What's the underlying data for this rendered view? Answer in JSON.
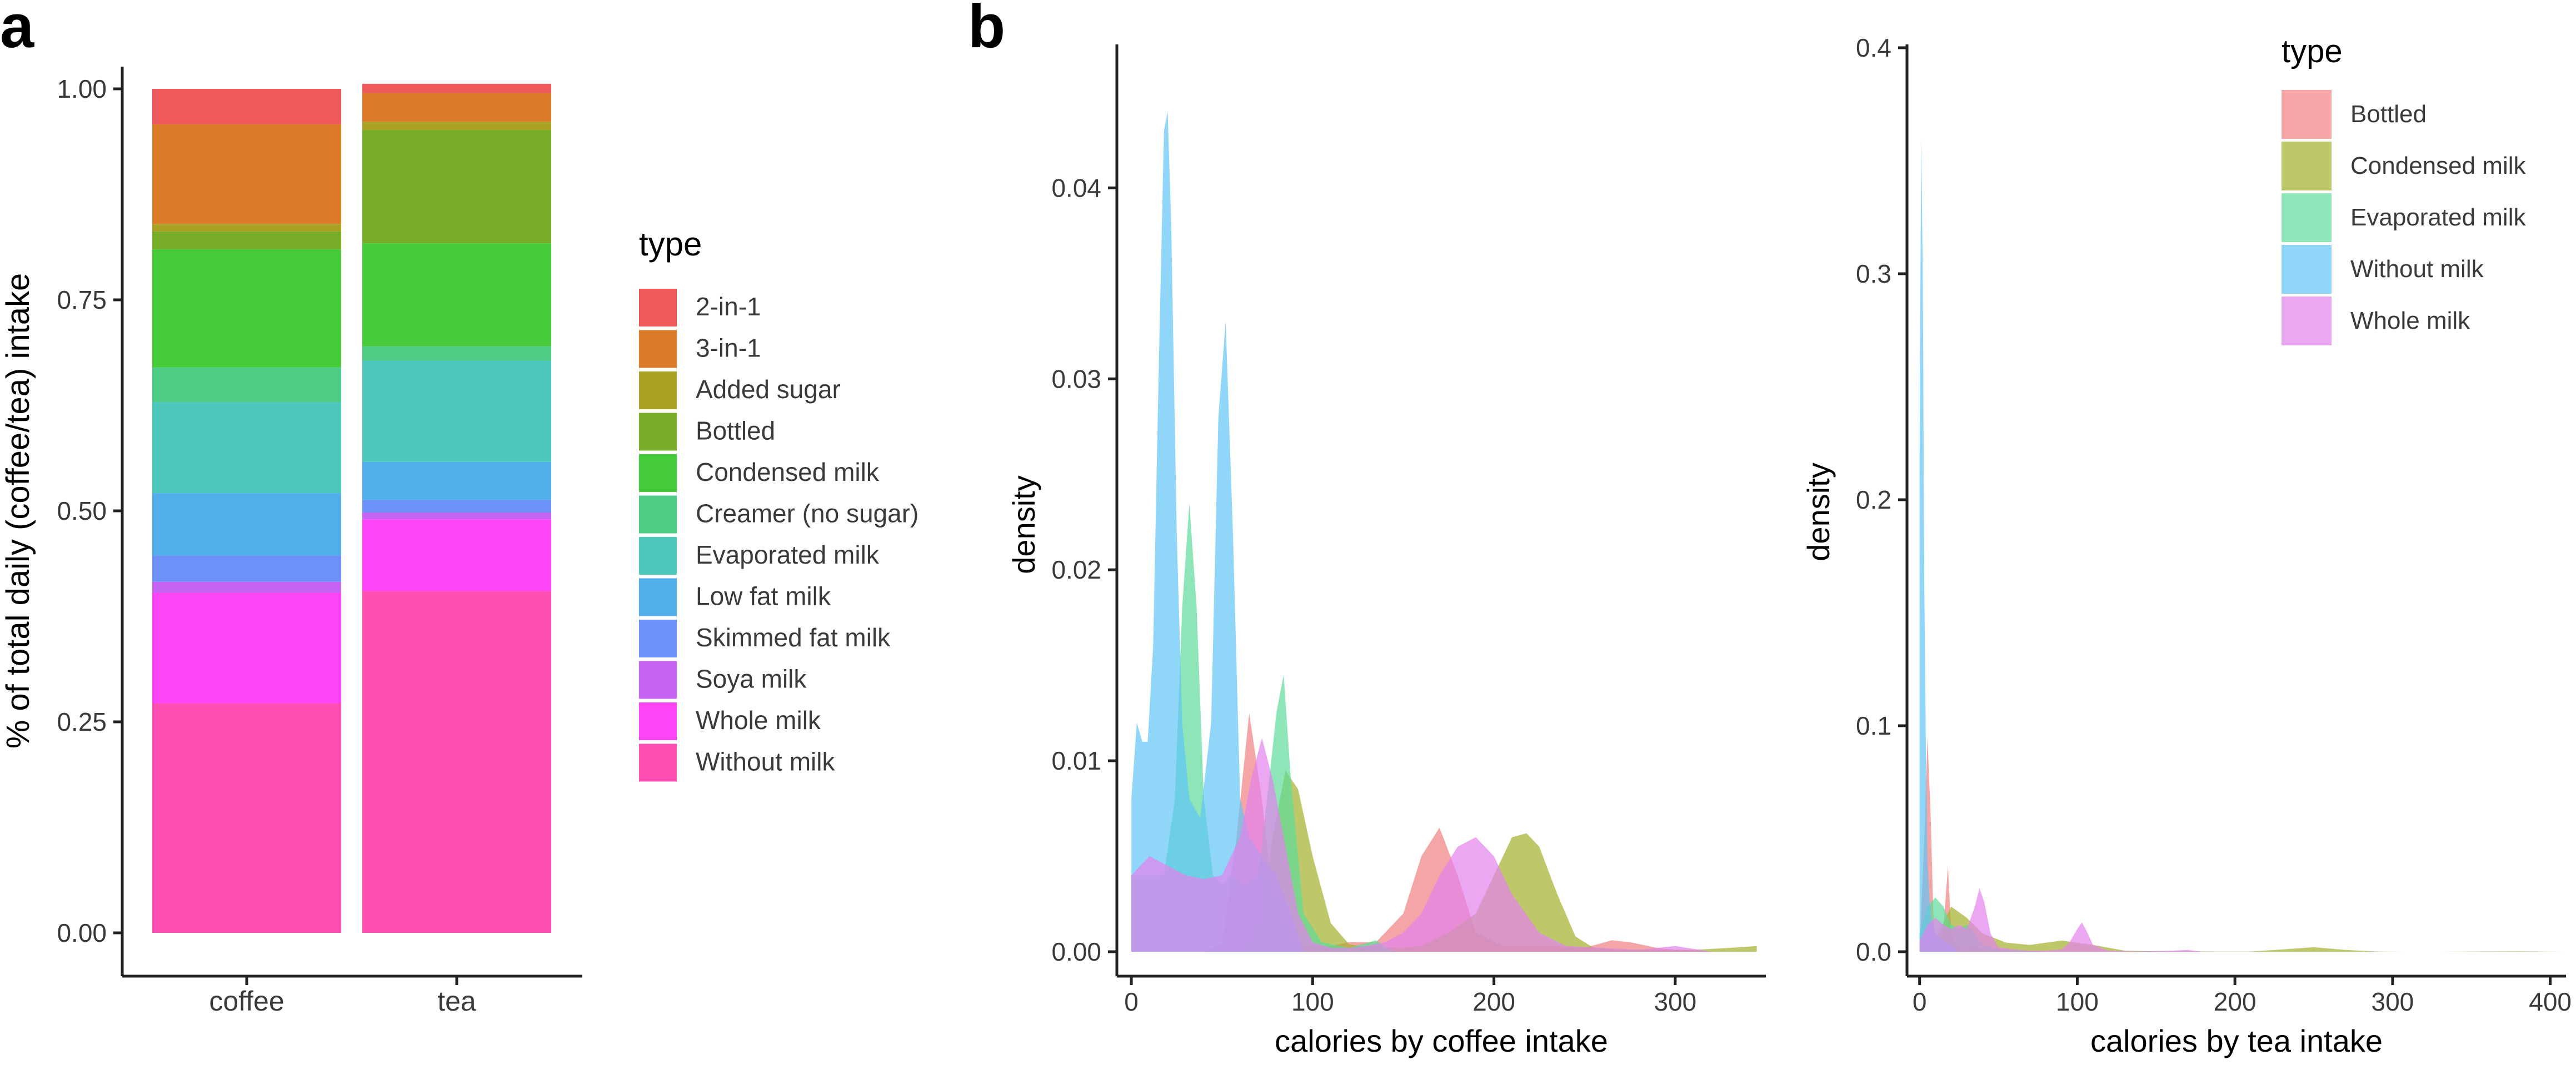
{
  "chart_data": [
    {
      "panel": "a",
      "type": "bar",
      "stacked": true,
      "ylabel": "% of total daily (coffee/tea) intake",
      "xlabel": "",
      "ylim": [
        0,
        1
      ],
      "yticks": [
        "0.00",
        "0.25",
        "0.50",
        "0.75",
        "1.00"
      ],
      "categories": [
        "coffee",
        "tea"
      ],
      "legend_title": "type",
      "series": [
        {
          "name": "Without milk",
          "color": "#FF4FB3",
          "values": [
            0.272,
            0.405
          ]
        },
        {
          "name": "Whole milk",
          "color": "#FD45F6",
          "values": [
            0.131,
            0.085
          ]
        },
        {
          "name": "Soya milk",
          "color": "#C564F2",
          "values": [
            0.013,
            0.008
          ]
        },
        {
          "name": "Skimmed fat milk",
          "color": "#6C91F8",
          "values": [
            0.031,
            0.015
          ]
        },
        {
          "name": "Low fat milk",
          "color": "#50AEEB",
          "values": [
            0.074,
            0.045
          ]
        },
        {
          "name": "Evaporated milk",
          "color": "#4CC9BA",
          "values": [
            0.108,
            0.12
          ]
        },
        {
          "name": "Creamer (no sugar)",
          "color": "#4ECB85",
          "values": [
            0.041,
            0.017
          ]
        },
        {
          "name": "Condensed milk",
          "color": "#47CB3B",
          "values": [
            0.14,
            0.122
          ]
        },
        {
          "name": "Bottled",
          "color": "#78AD2A",
          "values": [
            0.021,
            0.134
          ]
        },
        {
          "name": "Added sugar",
          "color": "#A9A224",
          "values": [
            0.009,
            0.01
          ]
        },
        {
          "name": "3-in-1",
          "color": "#DB7A29",
          "values": [
            0.118,
            0.034
          ]
        },
        {
          "name": "2-in-1",
          "color": "#F0595C",
          "values": [
            0.042,
            0.011
          ]
        }
      ],
      "legend_order": [
        "2-in-1",
        "3-in-1",
        "Added sugar",
        "Bottled",
        "Condensed milk",
        "Creamer (no sugar)",
        "Evaporated milk",
        "Low fat milk",
        "Skimmed fat milk",
        "Soya milk",
        "Whole milk",
        "Without milk"
      ]
    },
    {
      "panel": "b",
      "type": "area",
      "subtype": "density",
      "xlabel": "calories by coffee intake",
      "ylabel": "density",
      "xlim": [
        -8,
        350
      ],
      "ylim": [
        0,
        0.046
      ],
      "xticks": [
        0,
        100,
        200,
        300
      ],
      "yticks": [
        "0.00",
        "0.01",
        "0.02",
        "0.03",
        "0.04"
      ],
      "series": [
        {
          "name": "Bottled",
          "color": "#F08080",
          "x": [
            0,
            20,
            40,
            50,
            58,
            65,
            72,
            80,
            92,
            105,
            120,
            135,
            150,
            160,
            170,
            180,
            190,
            205,
            230,
            250,
            265,
            275,
            290,
            300,
            310,
            320
          ],
          "y": [
            0,
            0,
            0,
            0.0005,
            0.006,
            0.0125,
            0.008,
            0.001,
            0.0003,
            0.0002,
            0.0005,
            0.0005,
            0.002,
            0.005,
            0.0065,
            0.004,
            0.001,
            0.0003,
            0.0003,
            0.0002,
            0.0006,
            0.0005,
            0.0002,
            0.0001,
            0.0001,
            0
          ]
        },
        {
          "name": "Condensed milk",
          "color": "#A3B02C",
          "x": [
            0,
            30,
            60,
            70,
            78,
            85,
            92,
            100,
            110,
            120,
            130,
            140,
            150,
            160,
            175,
            190,
            200,
            210,
            218,
            225,
            235,
            245,
            255,
            270,
            290,
            310,
            330,
            345
          ],
          "y": [
            0,
            0,
            0,
            0.001,
            0.006,
            0.0095,
            0.0085,
            0.005,
            0.0015,
            0.0004,
            0.0002,
            0.0002,
            0.0002,
            0.0003,
            0.001,
            0.002,
            0.004,
            0.006,
            0.0062,
            0.0055,
            0.003,
            0.0008,
            0.0002,
            0.0001,
            0.0001,
            0.0001,
            0.0002,
            0.0003
          ]
        },
        {
          "name": "Evaporated milk",
          "color": "#5EDC9A",
          "x": [
            0,
            10,
            18,
            24,
            28,
            32,
            36,
            40,
            45,
            50,
            55,
            62,
            70,
            76,
            80,
            84,
            88,
            95,
            105,
            120,
            135,
            145
          ],
          "y": [
            0.004,
            0.004,
            0.004,
            0.008,
            0.018,
            0.0235,
            0.018,
            0.008,
            0.004,
            0.0035,
            0.004,
            0.0035,
            0.004,
            0.009,
            0.0125,
            0.0145,
            0.009,
            0.002,
            0.0005,
            0.0002,
            0.0006,
            0
          ]
        },
        {
          "name": "Without milk",
          "color": "#5FC4F5",
          "x": [
            0,
            3,
            6,
            9,
            12,
            15,
            18,
            20,
            22,
            25,
            28,
            32,
            38,
            44,
            48,
            52,
            56,
            60,
            65,
            72,
            80,
            88,
            95
          ],
          "y": [
            0.008,
            0.012,
            0.011,
            0.011,
            0.016,
            0.03,
            0.043,
            0.044,
            0.038,
            0.022,
            0.012,
            0.008,
            0.007,
            0.012,
            0.028,
            0.033,
            0.022,
            0.008,
            0.006,
            0.005,
            0.004,
            0.002,
            0
          ]
        },
        {
          "name": "Whole milk",
          "color": "#E382EC",
          "x": [
            0,
            10,
            20,
            30,
            40,
            50,
            60,
            66,
            72,
            78,
            84,
            92,
            100,
            110,
            120,
            130,
            140,
            150,
            160,
            170,
            180,
            190,
            200,
            210,
            225,
            240,
            260,
            280,
            300,
            320
          ],
          "y": [
            0.004,
            0.005,
            0.0045,
            0.004,
            0.0038,
            0.004,
            0.006,
            0.009,
            0.0112,
            0.009,
            0.006,
            0.002,
            0.0005,
            0.0002,
            0.0002,
            0.0003,
            0.0005,
            0.001,
            0.002,
            0.004,
            0.0055,
            0.006,
            0.005,
            0.003,
            0.001,
            0.0003,
            0.0002,
            0.0001,
            0.0003,
            0
          ]
        }
      ]
    },
    {
      "panel": "b2",
      "type": "area",
      "subtype": "density",
      "xlabel": "calories by tea intake",
      "ylabel": "density",
      "xlim": [
        -8,
        410
      ],
      "ylim": [
        0,
        0.4
      ],
      "xticks": [
        0,
        100,
        200,
        300,
        400
      ],
      "yticks": [
        "0.0",
        "0.1",
        "0.2",
        "0.3",
        "0.4"
      ],
      "legend_title": "type",
      "series": [
        {
          "name": "Bottled",
          "color": "#F08080",
          "x": [
            0,
            3,
            5,
            7,
            9,
            12,
            15,
            18,
            20,
            23,
            28,
            35,
            45,
            55,
            70
          ],
          "y": [
            0,
            0.05,
            0.095,
            0.06,
            0.01,
            0.002,
            0.01,
            0.038,
            0.01,
            0.002,
            0.001,
            0.002,
            0.0005,
            0.0002,
            0
          ]
        },
        {
          "name": "Condensed milk",
          "color": "#A3B02C",
          "x": [
            0,
            10,
            20,
            30,
            40,
            55,
            70,
            90,
            110,
            130,
            150,
            170,
            190,
            210,
            230,
            250,
            270,
            290,
            310,
            330,
            350,
            380,
            410
          ],
          "y": [
            0,
            0.005,
            0.02,
            0.015,
            0.008,
            0.004,
            0.003,
            0.005,
            0.003,
            0.0005,
            0.0002,
            0.0002,
            0.0001,
            0.0001,
            0.001,
            0.002,
            0.0008,
            0.0001,
            0,
            0,
            0.0001,
            0.0002,
            0
          ]
        },
        {
          "name": "Evaporated milk",
          "color": "#5EDC9A",
          "x": [
            0,
            5,
            10,
            15,
            20,
            25,
            30,
            35,
            40,
            50,
            60,
            80
          ],
          "y": [
            0.008,
            0.02,
            0.024,
            0.02,
            0.012,
            0.01,
            0.012,
            0.008,
            0.003,
            0.001,
            0.0005,
            0
          ]
        },
        {
          "name": "Without milk",
          "color": "#5FC4F5",
          "x": [
            0,
            1,
            2,
            3,
            4,
            5,
            7,
            10,
            15,
            20,
            25
          ],
          "y": [
            0.22,
            0.36,
            0.3,
            0.16,
            0.09,
            0.04,
            0.015,
            0.008,
            0.005,
            0.003,
            0
          ]
        },
        {
          "name": "Whole milk",
          "color": "#E382EC",
          "x": [
            0,
            5,
            10,
            15,
            20,
            25,
            30,
            35,
            38,
            41,
            45,
            50,
            60,
            70,
            80,
            90,
            95,
            100,
            103,
            106,
            110,
            120,
            140,
            160,
            170,
            180
          ],
          "y": [
            0.005,
            0.012,
            0.015,
            0.012,
            0.01,
            0.012,
            0.01,
            0.02,
            0.028,
            0.022,
            0.008,
            0.002,
            0.001,
            0.0005,
            0.0005,
            0.001,
            0.004,
            0.01,
            0.013,
            0.009,
            0.003,
            0.0005,
            0.0002,
            0.0005,
            0.0008,
            0
          ]
        }
      ]
    }
  ],
  "labels": {
    "panel_a": "a",
    "panel_b": "b"
  }
}
